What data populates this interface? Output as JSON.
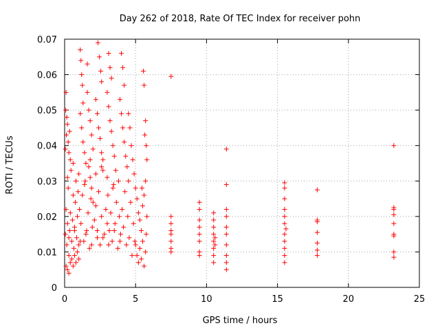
{
  "chart_data": {
    "type": "scatter",
    "title": "Day 262 of 2018, Rate Of TEC Index for receiver pohn",
    "xlabel": "GPS time / hours",
    "ylabel": "ROTI / TECUs",
    "xlim": [
      0,
      25
    ],
    "ylim": [
      0,
      0.07
    ],
    "x_ticks": [
      0,
      5,
      10,
      15,
      20,
      25
    ],
    "x_tick_labels": [
      "0",
      "5",
      "10",
      "15",
      "20",
      "25"
    ],
    "y_ticks": [
      0,
      0.01,
      0.02,
      0.03,
      0.04,
      0.05,
      0.06,
      0.07
    ],
    "y_tick_labels": [
      "0",
      "0.01",
      "0.02",
      "0.03",
      "0.04",
      "0.05",
      "0.06",
      "0.07"
    ],
    "grid": true,
    "marker": "+",
    "series": [
      {
        "name": "ROTI",
        "color": "#ff0000",
        "points": [
          [
            0.05,
            0.015
          ],
          [
            0.1,
            0.022
          ],
          [
            0.15,
            0.012
          ],
          [
            0.2,
            0.018
          ],
          [
            0.25,
            0.028
          ],
          [
            0.3,
            0.009
          ],
          [
            0.35,
            0.016
          ],
          [
            0.4,
            0.021
          ],
          [
            0.45,
            0.033
          ],
          [
            0.5,
            0.013
          ],
          [
            0.55,
            0.019
          ],
          [
            0.6,
            0.026
          ],
          [
            0.65,
            0.011
          ],
          [
            0.7,
            0.017
          ],
          [
            0.75,
            0.024
          ],
          [
            0.8,
            0.03
          ],
          [
            0.85,
            0.014
          ],
          [
            0.9,
            0.02
          ],
          [
            0.95,
            0.027
          ],
          [
            1.0,
            0.012
          ],
          [
            0.1,
            0.055
          ],
          [
            0.15,
            0.048
          ],
          [
            0.2,
            0.046
          ],
          [
            0.25,
            0.041
          ],
          [
            0.3,
            0.038
          ],
          [
            0.35,
            0.044
          ],
          [
            0.4,
            0.036
          ],
          [
            0.08,
            0.05
          ],
          [
            0.12,
            0.043
          ],
          [
            0.05,
            0.039
          ],
          [
            0.1,
            0.006
          ],
          [
            0.2,
            0.005
          ],
          [
            0.3,
            0.004
          ],
          [
            0.4,
            0.007
          ],
          [
            0.5,
            0.008
          ],
          [
            0.6,
            0.006
          ],
          [
            0.7,
            0.009
          ],
          [
            0.8,
            0.007
          ],
          [
            0.9,
            0.01
          ],
          [
            1.0,
            0.008
          ],
          [
            1.1,
            0.067
          ],
          [
            1.15,
            0.064
          ],
          [
            1.2,
            0.06
          ],
          [
            1.25,
            0.057
          ],
          [
            1.3,
            0.052
          ],
          [
            1.1,
            0.049
          ],
          [
            1.2,
            0.045
          ],
          [
            1.3,
            0.041
          ],
          [
            1.4,
            0.038
          ],
          [
            1.5,
            0.035
          ],
          [
            1.05,
            0.022
          ],
          [
            1.15,
            0.018
          ],
          [
            1.25,
            0.026
          ],
          [
            1.35,
            0.013
          ],
          [
            1.45,
            0.03
          ],
          [
            1.55,
            0.016
          ],
          [
            1.65,
            0.021
          ],
          [
            1.75,
            0.011
          ],
          [
            1.85,
            0.025
          ],
          [
            1.95,
            0.017
          ],
          [
            1.6,
            0.055
          ],
          [
            1.7,
            0.05
          ],
          [
            1.8,
            0.047
          ],
          [
            1.9,
            0.043
          ],
          [
            2.0,
            0.039
          ],
          [
            1.7,
            0.034
          ],
          [
            1.8,
            0.031
          ],
          [
            1.9,
            0.028
          ],
          [
            2.0,
            0.024
          ],
          [
            1.6,
            0.063
          ],
          [
            2.1,
            0.019
          ],
          [
            2.2,
            0.023
          ],
          [
            2.3,
            0.014
          ],
          [
            2.4,
            0.027
          ],
          [
            2.5,
            0.012
          ],
          [
            2.6,
            0.02
          ],
          [
            2.7,
            0.033
          ],
          [
            2.8,
            0.015
          ],
          [
            2.9,
            0.022
          ],
          [
            3.0,
            0.018
          ],
          [
            2.35,
            0.069
          ],
          [
            2.45,
            0.065
          ],
          [
            2.55,
            0.061
          ],
          [
            2.6,
            0.058
          ],
          [
            2.2,
            0.053
          ],
          [
            2.3,
            0.049
          ],
          [
            2.4,
            0.045
          ],
          [
            2.5,
            0.042
          ],
          [
            2.6,
            0.038
          ],
          [
            2.7,
            0.036
          ],
          [
            3.1,
            0.066
          ],
          [
            3.2,
            0.062
          ],
          [
            3.3,
            0.059
          ],
          [
            3.0,
            0.055
          ],
          [
            3.1,
            0.051
          ],
          [
            3.2,
            0.047
          ],
          [
            3.3,
            0.044
          ],
          [
            3.4,
            0.04
          ],
          [
            3.5,
            0.037
          ],
          [
            3.6,
            0.033
          ],
          [
            3.05,
            0.026
          ],
          [
            3.15,
            0.016
          ],
          [
            3.25,
            0.021
          ],
          [
            3.35,
            0.013
          ],
          [
            3.45,
            0.029
          ],
          [
            3.55,
            0.018
          ],
          [
            3.65,
            0.024
          ],
          [
            3.75,
            0.011
          ],
          [
            3.85,
            0.02
          ],
          [
            3.95,
            0.015
          ],
          [
            4.0,
            0.066
          ],
          [
            4.1,
            0.062
          ],
          [
            4.2,
            0.057
          ],
          [
            3.9,
            0.053
          ],
          [
            4.0,
            0.049
          ],
          [
            4.1,
            0.045
          ],
          [
            4.2,
            0.041
          ],
          [
            4.3,
            0.037
          ],
          [
            4.4,
            0.034
          ],
          [
            4.5,
            0.03
          ],
          [
            4.05,
            0.022
          ],
          [
            4.15,
            0.017
          ],
          [
            4.25,
            0.027
          ],
          [
            4.35,
            0.012
          ],
          [
            4.45,
            0.02
          ],
          [
            4.55,
            0.014
          ],
          [
            4.65,
            0.024
          ],
          [
            4.75,
            0.009
          ],
          [
            4.85,
            0.018
          ],
          [
            4.95,
            0.013
          ],
          [
            4.5,
            0.049
          ],
          [
            4.6,
            0.045
          ],
          [
            4.7,
            0.04
          ],
          [
            4.8,
            0.036
          ],
          [
            4.9,
            0.032
          ],
          [
            5.0,
            0.028
          ],
          [
            5.1,
            0.025
          ],
          [
            5.2,
            0.021
          ],
          [
            5.3,
            0.019
          ],
          [
            5.4,
            0.016
          ],
          [
            5.0,
            0.012
          ],
          [
            5.1,
            0.009
          ],
          [
            5.2,
            0.007
          ],
          [
            5.3,
            0.011
          ],
          [
            5.4,
            0.008
          ],
          [
            5.5,
            0.013
          ],
          [
            5.6,
            0.006
          ],
          [
            5.7,
            0.01
          ],
          [
            5.75,
            0.015
          ],
          [
            5.8,
            0.02
          ],
          [
            5.55,
            0.061
          ],
          [
            5.6,
            0.057
          ],
          [
            5.7,
            0.047
          ],
          [
            5.65,
            0.043
          ],
          [
            5.75,
            0.04
          ],
          [
            5.8,
            0.036
          ],
          [
            5.7,
            0.03
          ],
          [
            5.6,
            0.026
          ],
          [
            5.5,
            0.023
          ],
          [
            5.45,
            0.028
          ],
          [
            0.2,
            0.031
          ],
          [
            0.6,
            0.035
          ],
          [
            1.0,
            0.032
          ],
          [
            1.4,
            0.029
          ],
          [
            1.8,
            0.036
          ],
          [
            2.2,
            0.032
          ],
          [
            2.6,
            0.034
          ],
          [
            3.0,
            0.031
          ],
          [
            3.4,
            0.028
          ],
          [
            3.8,
            0.03
          ],
          [
            0.3,
            0.014
          ],
          [
            0.7,
            0.016
          ],
          [
            1.1,
            0.013
          ],
          [
            1.5,
            0.015
          ],
          [
            1.9,
            0.012
          ],
          [
            2.3,
            0.016
          ],
          [
            2.7,
            0.014
          ],
          [
            3.1,
            0.012
          ],
          [
            3.5,
            0.016
          ],
          [
            3.9,
            0.013
          ],
          [
            7.5,
            0.0595
          ],
          [
            7.5,
            0.02
          ],
          [
            7.5,
            0.018
          ],
          [
            7.5,
            0.016
          ],
          [
            7.5,
            0.013
          ],
          [
            7.5,
            0.011
          ],
          [
            7.5,
            0.01
          ],
          [
            7.5,
            0.015
          ],
          [
            9.5,
            0.024
          ],
          [
            9.5,
            0.022
          ],
          [
            9.5,
            0.019
          ],
          [
            9.5,
            0.017
          ],
          [
            9.5,
            0.015
          ],
          [
            9.5,
            0.013
          ],
          [
            9.5,
            0.01
          ],
          [
            9.5,
            0.009
          ],
          [
            10.5,
            0.021
          ],
          [
            10.5,
            0.019
          ],
          [
            10.5,
            0.017
          ],
          [
            10.5,
            0.015
          ],
          [
            10.5,
            0.013
          ],
          [
            10.5,
            0.011
          ],
          [
            10.5,
            0.009
          ],
          [
            10.5,
            0.007
          ],
          [
            10.6,
            0.014
          ],
          [
            10.6,
            0.012
          ],
          [
            11.4,
            0.039
          ],
          [
            11.4,
            0.029
          ],
          [
            11.4,
            0.022
          ],
          [
            11.4,
            0.02
          ],
          [
            11.4,
            0.017
          ],
          [
            11.4,
            0.015
          ],
          [
            11.4,
            0.012
          ],
          [
            11.4,
            0.009
          ],
          [
            11.4,
            0.007
          ],
          [
            11.4,
            0.005
          ],
          [
            15.5,
            0.0295
          ],
          [
            15.5,
            0.028
          ],
          [
            15.5,
            0.025
          ],
          [
            15.5,
            0.022
          ],
          [
            15.5,
            0.02
          ],
          [
            15.5,
            0.018
          ],
          [
            15.5,
            0.015
          ],
          [
            15.5,
            0.013
          ],
          [
            15.5,
            0.011
          ],
          [
            15.5,
            0.009
          ],
          [
            15.5,
            0.007
          ],
          [
            15.6,
            0.0165
          ],
          [
            17.8,
            0.0275
          ],
          [
            17.8,
            0.019
          ],
          [
            17.8,
            0.0185
          ],
          [
            17.8,
            0.0155
          ],
          [
            17.8,
            0.0125
          ],
          [
            17.8,
            0.0105
          ],
          [
            17.8,
            0.009
          ],
          [
            23.2,
            0.04
          ],
          [
            23.2,
            0.0225
          ],
          [
            23.2,
            0.022
          ],
          [
            23.2,
            0.0205
          ],
          [
            23.2,
            0.018
          ],
          [
            23.2,
            0.015
          ],
          [
            23.2,
            0.0145
          ],
          [
            23.2,
            0.01
          ],
          [
            23.2,
            0.0085
          ]
        ]
      }
    ]
  }
}
